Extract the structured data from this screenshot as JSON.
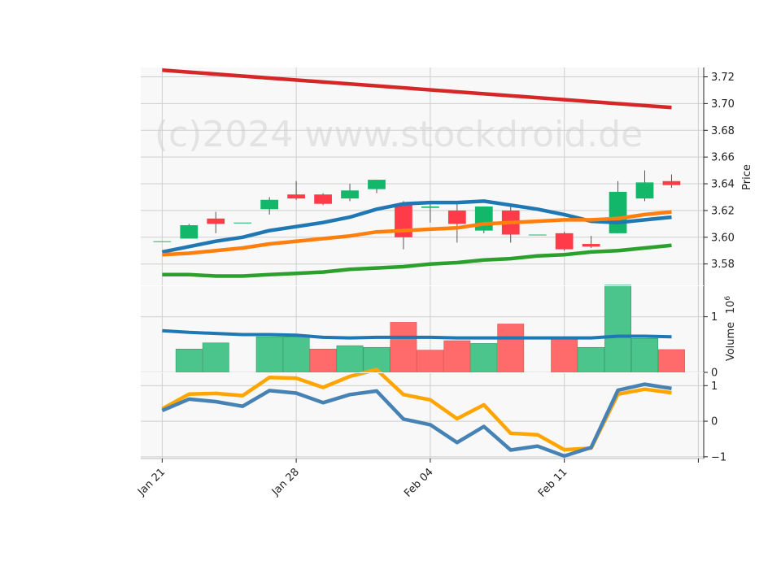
{
  "watermark": "(c)2024 www.stockdroid.de",
  "chart_data": [
    {
      "type": "candlestick",
      "panel": "price",
      "ylabel": "Price",
      "ylim": [
        3.564,
        3.727
      ],
      "yticks": [
        3.58,
        3.6,
        3.62,
        3.64,
        3.66,
        3.68,
        3.7,
        3.72
      ],
      "ytick_labels": [
        "3.58",
        "3.60",
        "3.62",
        "3.64",
        "3.66",
        "3.68",
        "3.70",
        "3.72"
      ],
      "xlim": [
        -0.8,
        20.2
      ],
      "xticks": [
        0,
        5,
        10,
        15,
        20
      ],
      "xtick_labels": [
        "Jan 21",
        "Jan 28",
        "Feb 04",
        "Feb 11",
        ""
      ],
      "grid": true,
      "up_color": "#12b76a",
      "down_color": "#ff3b4a",
      "candles": [
        {
          "x": 0,
          "open": 3.597,
          "high": 3.597,
          "low": 3.597,
          "close": 3.597
        },
        {
          "x": 1,
          "open": 3.599,
          "high": 3.61,
          "low": 3.599,
          "close": 3.609
        },
        {
          "x": 2,
          "open": 3.614,
          "high": 3.619,
          "low": 3.603,
          "close": 3.61
        },
        {
          "x": 3,
          "open": 3.611,
          "high": 3.611,
          "low": 3.611,
          "close": 3.611
        },
        {
          "x": 4,
          "open": 3.621,
          "high": 3.63,
          "low": 3.617,
          "close": 3.628
        },
        {
          "x": 5,
          "open": 3.632,
          "high": 3.642,
          "low": 3.628,
          "close": 3.629
        },
        {
          "x": 6,
          "open": 3.632,
          "high": 3.633,
          "low": 3.624,
          "close": 3.625
        },
        {
          "x": 7,
          "open": 3.629,
          "high": 3.64,
          "low": 3.627,
          "close": 3.635
        },
        {
          "x": 8,
          "open": 3.636,
          "high": 3.643,
          "low": 3.633,
          "close": 3.643
        },
        {
          "x": 9,
          "open": 3.625,
          "high": 3.627,
          "low": 3.591,
          "close": 3.6
        },
        {
          "x": 10,
          "open": 3.622,
          "high": 3.625,
          "low": 3.611,
          "close": 3.623
        },
        {
          "x": 11,
          "open": 3.62,
          "high": 3.625,
          "low": 3.596,
          "close": 3.61
        },
        {
          "x": 12,
          "open": 3.605,
          "high": 3.623,
          "low": 3.603,
          "close": 3.623
        },
        {
          "x": 13,
          "open": 3.62,
          "high": 3.625,
          "low": 3.596,
          "close": 3.602
        },
        {
          "x": 14,
          "open": 3.602,
          "high": 3.602,
          "low": 3.602,
          "close": 3.602
        },
        {
          "x": 15,
          "open": 3.603,
          "high": 3.604,
          "low": 3.59,
          "close": 3.591
        },
        {
          "x": 16,
          "open": 3.595,
          "high": 3.601,
          "low": 3.592,
          "close": 3.593
        },
        {
          "x": 17,
          "open": 3.603,
          "high": 3.642,
          "low": 3.603,
          "close": 3.634
        },
        {
          "x": 18,
          "open": 3.629,
          "high": 3.65,
          "low": 3.627,
          "close": 3.641
        },
        {
          "x": 19,
          "open": 3.642,
          "high": 3.647,
          "low": 3.637,
          "close": 3.639
        }
      ],
      "lines": [
        {
          "color": "#1f77b4",
          "x": [
            0,
            1,
            2,
            3,
            4,
            5,
            6,
            7,
            8,
            9,
            10,
            11,
            12,
            13,
            14,
            15,
            16,
            17,
            18,
            19
          ],
          "values": [
            3.589,
            3.593,
            3.597,
            3.6,
            3.605,
            3.608,
            3.611,
            3.615,
            3.621,
            3.625,
            3.626,
            3.626,
            3.627,
            3.624,
            3.621,
            3.617,
            3.612,
            3.611,
            3.613,
            3.615
          ]
        },
        {
          "color": "#ff7f0e",
          "x": [
            0,
            1,
            2,
            3,
            4,
            5,
            6,
            7,
            8,
            9,
            10,
            11,
            12,
            13,
            14,
            15,
            16,
            17,
            18,
            19
          ],
          "values": [
            3.587,
            3.588,
            3.59,
            3.592,
            3.595,
            3.597,
            3.599,
            3.601,
            3.604,
            3.605,
            3.606,
            3.607,
            3.61,
            3.611,
            3.612,
            3.613,
            3.613,
            3.614,
            3.617,
            3.619
          ]
        },
        {
          "color": "#2ca02c",
          "x": [
            0,
            1,
            2,
            3,
            4,
            5,
            6,
            7,
            8,
            9,
            10,
            11,
            12,
            13,
            14,
            15,
            16,
            17,
            18,
            19
          ],
          "values": [
            3.572,
            3.572,
            3.571,
            3.571,
            3.572,
            3.573,
            3.574,
            3.576,
            3.577,
            3.578,
            3.58,
            3.581,
            3.583,
            3.584,
            3.586,
            3.587,
            3.589,
            3.59,
            3.592,
            3.594
          ]
        },
        {
          "color": "#d62728",
          "x": [
            0,
            19
          ],
          "values": [
            3.725,
            3.697
          ]
        }
      ]
    },
    {
      "type": "bar",
      "panel": "volume",
      "ylabel": "Volume",
      "yscale_label": "10^6",
      "ylim": [
        0,
        1.55
      ],
      "yticks": [
        0,
        1
      ],
      "ytick_labels": [
        "0",
        "1"
      ],
      "grid": true,
      "x": [
        1,
        2,
        3,
        4,
        5,
        6,
        7,
        8,
        9,
        10,
        11,
        12,
        13,
        14,
        15,
        16,
        17,
        18,
        19
      ],
      "values": [
        0.42,
        0.53,
        0,
        0.64,
        0.64,
        0.42,
        0.48,
        0.45,
        0.9,
        0.4,
        0.57,
        0.52,
        0.87,
        0,
        0.61,
        0.45,
        1.57,
        0.61,
        0.41
      ],
      "directions": [
        "up",
        "up",
        "up",
        "up",
        "up",
        "down",
        "up",
        "up",
        "down",
        "down",
        "down",
        "up",
        "down",
        "down",
        "down",
        "up",
        "up",
        "up",
        "down"
      ],
      "up_color": "#4cc58c",
      "down_color": "#ff6b6b",
      "line": {
        "color": "#1f77b4",
        "x": [
          0,
          1,
          2,
          3,
          4,
          5,
          6,
          7,
          8,
          9,
          10,
          11,
          12,
          13,
          14,
          15,
          16,
          17,
          18,
          19
        ],
        "values": [
          0.75,
          0.72,
          0.7,
          0.68,
          0.68,
          0.67,
          0.63,
          0.62,
          0.63,
          0.63,
          0.63,
          0.62,
          0.62,
          0.62,
          0.62,
          0.62,
          0.62,
          0.65,
          0.65,
          0.64
        ]
      }
    },
    {
      "type": "line",
      "panel": "oscillator",
      "ylim": [
        -1.05,
        1.35
      ],
      "yticks": [
        -1,
        0,
        1
      ],
      "ytick_labels": [
        "−1",
        "0",
        "1"
      ],
      "grid": true,
      "series": [
        {
          "color": "#ffa500",
          "x": [
            0,
            1,
            2,
            3,
            4,
            5,
            6,
            7,
            8,
            9,
            10,
            11,
            12,
            13,
            14,
            15,
            16,
            17,
            18,
            19
          ],
          "values": [
            0.35,
            0.76,
            0.78,
            0.72,
            1.23,
            1.21,
            0.95,
            1.26,
            1.45,
            0.75,
            0.6,
            0.07,
            0.46,
            -0.34,
            -0.38,
            -0.8,
            -0.76,
            0.76,
            0.9,
            0.8
          ]
        },
        {
          "color": "#4682b4",
          "x": [
            0,
            1,
            2,
            3,
            4,
            5,
            6,
            7,
            8,
            9,
            10,
            11,
            12,
            13,
            14,
            15,
            16,
            17,
            18,
            19
          ],
          "values": [
            0.3,
            0.62,
            0.55,
            0.42,
            0.86,
            0.79,
            0.52,
            0.75,
            0.85,
            0.06,
            -0.1,
            -0.6,
            -0.15,
            -0.81,
            -0.7,
            -0.98,
            -0.74,
            0.87,
            1.04,
            0.92
          ]
        }
      ]
    }
  ]
}
